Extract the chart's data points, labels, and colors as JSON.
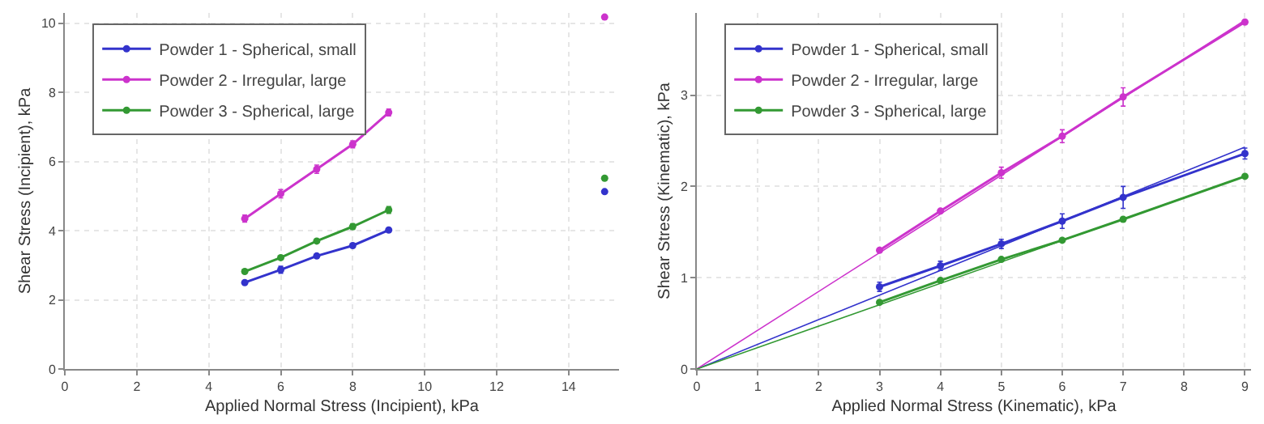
{
  "chart_data": [
    {
      "type": "line",
      "xlabel": "Applied Normal Stress (Incipient), kPa",
      "ylabel": "Shear Stress (Incipient), kPa",
      "xlim": [
        0,
        15.4
      ],
      "xticks": [
        0,
        2,
        4,
        6,
        8,
        10,
        12,
        14
      ],
      "ylim": [
        0,
        10.3
      ],
      "yticks": [
        0,
        2,
        4,
        6,
        8,
        10
      ],
      "grid": true,
      "legend": "top left",
      "marker": "circle",
      "series": [
        {
          "name": "Powder 1 - Spherical, small",
          "color": "#3333cc",
          "x": [
            5,
            6,
            7,
            8,
            9
          ],
          "values": [
            2.5,
            2.87,
            3.27,
            3.57,
            4.02
          ],
          "errors": [
            null,
            0.1,
            null,
            null,
            null
          ]
        },
        {
          "name": "Powder 2 - Irregular, large",
          "color": "#cc33cc",
          "x": [
            5,
            6,
            7,
            8,
            9
          ],
          "values": [
            4.35,
            5.07,
            5.78,
            6.5,
            7.42
          ],
          "errors": [
            0.1,
            0.12,
            0.12,
            0.1,
            0.1
          ]
        },
        {
          "name": "Powder 3 - Spherical, large",
          "color": "#339933",
          "x": [
            5,
            6,
            7,
            8,
            9
          ],
          "values": [
            2.82,
            3.22,
            3.7,
            4.12,
            4.6
          ],
          "errors": [
            null,
            null,
            null,
            0.08,
            0.1
          ]
        },
        {
          "type": "scatter",
          "color": "#3333cc",
          "x": [
            15
          ],
          "values": [
            5.13
          ]
        },
        {
          "type": "scatter",
          "color": "#cc33cc",
          "x": [
            15
          ],
          "values": [
            10.18
          ]
        },
        {
          "type": "scatter",
          "color": "#339933",
          "x": [
            15
          ],
          "values": [
            5.52
          ]
        }
      ]
    },
    {
      "type": "line",
      "xlabel": "Applied Normal Stress (Kinematic), kPa",
      "ylabel": "Shear Stress (Kinematic), kPa",
      "xlim": [
        0,
        9.1
      ],
      "xticks": [
        0,
        1,
        2,
        3,
        4,
        5,
        6,
        7,
        8,
        9
      ],
      "ylim": [
        0,
        3.9
      ],
      "yticks": [
        0,
        1,
        2,
        3
      ],
      "grid": true,
      "legend": "top left",
      "marker": "circle",
      "series": [
        {
          "name": "Powder 1 - Spherical, small",
          "color": "#3333cc",
          "x": [
            3,
            4,
            5,
            6,
            7,
            9
          ],
          "values": [
            0.9,
            1.13,
            1.37,
            1.62,
            1.88,
            2.36
          ],
          "errors": [
            0.05,
            0.05,
            0.05,
            0.08,
            0.12,
            0.06
          ]
        },
        {
          "name": "Powder 2 - Irregular, large",
          "color": "#cc33cc",
          "x": [
            3,
            4,
            5,
            6,
            7,
            9
          ],
          "values": [
            1.3,
            1.73,
            2.15,
            2.55,
            2.98,
            3.8
          ],
          "errors": [
            null,
            null,
            0.06,
            0.07,
            0.1,
            null
          ]
        },
        {
          "name": "Powder 3 - Spherical, large",
          "color": "#339933",
          "x": [
            3,
            4,
            5,
            6,
            7,
            9
          ],
          "values": [
            0.73,
            0.97,
            1.2,
            1.41,
            1.64,
            2.11
          ]
        },
        {
          "color": "#3333cc",
          "x": [
            0,
            9
          ],
          "values": [
            0,
            2.43
          ],
          "marker": "none"
        },
        {
          "color": "#cc33cc",
          "x": [
            0,
            9
          ],
          "values": [
            0,
            3.82
          ],
          "marker": "none"
        },
        {
          "color": "#339933",
          "x": [
            0,
            9
          ],
          "values": [
            0,
            2.11
          ],
          "marker": "none"
        }
      ]
    }
  ]
}
